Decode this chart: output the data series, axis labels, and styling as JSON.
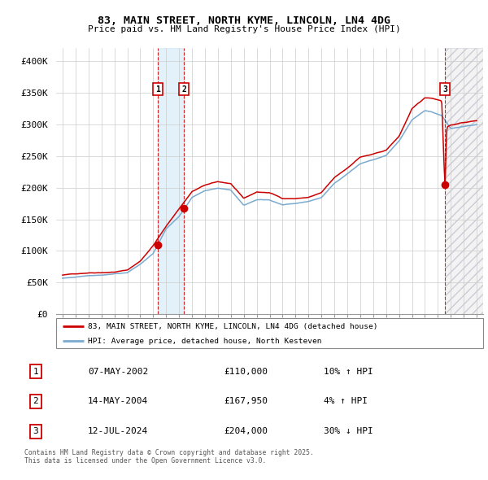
{
  "title_line1": "83, MAIN STREET, NORTH KYME, LINCOLN, LN4 4DG",
  "title_line2": "Price paid vs. HM Land Registry's House Price Index (HPI)",
  "ylabel_ticks": [
    "£0",
    "£50K",
    "£100K",
    "£150K",
    "£200K",
    "£250K",
    "£300K",
    "£350K",
    "£400K"
  ],
  "ytick_values": [
    0,
    50000,
    100000,
    150000,
    200000,
    250000,
    300000,
    350000,
    400000
  ],
  "xlim_start": 1994.5,
  "xlim_end": 2027.5,
  "ylim": [
    0,
    420000
  ],
  "transaction_markers": [
    {
      "label": "1",
      "date_val": 2002.35,
      "price": 110000
    },
    {
      "label": "2",
      "date_val": 2004.37,
      "price": 167950
    },
    {
      "label": "3",
      "date_val": 2024.54,
      "price": 204000
    }
  ],
  "legend_line1": "83, MAIN STREET, NORTH KYME, LINCOLN, LN4 4DG (detached house)",
  "legend_line2": "HPI: Average price, detached house, North Kesteven",
  "table_entries": [
    {
      "num": "1",
      "date": "07-MAY-2002",
      "price": "£110,000",
      "pct": "10% ↑ HPI"
    },
    {
      "num": "2",
      "date": "14-MAY-2004",
      "price": "£167,950",
      "pct": "4% ↑ HPI"
    },
    {
      "num": "3",
      "date": "12-JUL-2024",
      "price": "£204,000",
      "pct": "30% ↓ HPI"
    }
  ],
  "footnote": "Contains HM Land Registry data © Crown copyright and database right 2025.\nThis data is licensed under the Open Government Licence v3.0.",
  "red_color": "#cc0000",
  "blue_color": "#7aaacf",
  "region12_start": 2002.35,
  "region12_end": 2004.37,
  "region3_start": 2024.54,
  "region3_end": 2027.5,
  "anchor_years_red": [
    1995,
    1996,
    1997,
    1998,
    1999,
    2000,
    2001,
    2002,
    2003,
    2004,
    2005,
    2006,
    2007,
    2008,
    2009,
    2010,
    2011,
    2012,
    2013,
    2014,
    2015,
    2016,
    2017,
    2018,
    2019,
    2020,
    2021,
    2022,
    2023,
    2023.5,
    2024.3,
    2024.54,
    2024.7,
    2025,
    2026,
    2027
  ],
  "anchor_red": [
    62000,
    64000,
    66000,
    67000,
    68000,
    71000,
    85000,
    110000,
    140000,
    167950,
    195000,
    205000,
    210000,
    207000,
    183000,
    193000,
    192000,
    183000,
    183000,
    185000,
    192000,
    215000,
    230000,
    248000,
    252000,
    258000,
    280000,
    323000,
    340000,
    340000,
    336000,
    204000,
    295000,
    298000,
    302000,
    305000
  ],
  "anchor_years_blue": [
    1995,
    1996,
    1997,
    1998,
    1999,
    2000,
    2001,
    2002,
    2003,
    2004,
    2005,
    2006,
    2007,
    2008,
    2009,
    2010,
    2011,
    2012,
    2013,
    2014,
    2015,
    2016,
    2017,
    2018,
    2019,
    2020,
    2021,
    2022,
    2023,
    2023.5,
    2024.3,
    2025,
    2026,
    2027
  ],
  "anchor_blue": [
    57000,
    59000,
    62000,
    63000,
    65000,
    67000,
    80000,
    97000,
    135000,
    155000,
    185000,
    196000,
    200000,
    197000,
    173000,
    182000,
    182000,
    174000,
    176000,
    179000,
    185000,
    207000,
    222000,
    238000,
    244000,
    250000,
    272000,
    305000,
    320000,
    318000,
    312000,
    291000,
    295000,
    298000
  ]
}
